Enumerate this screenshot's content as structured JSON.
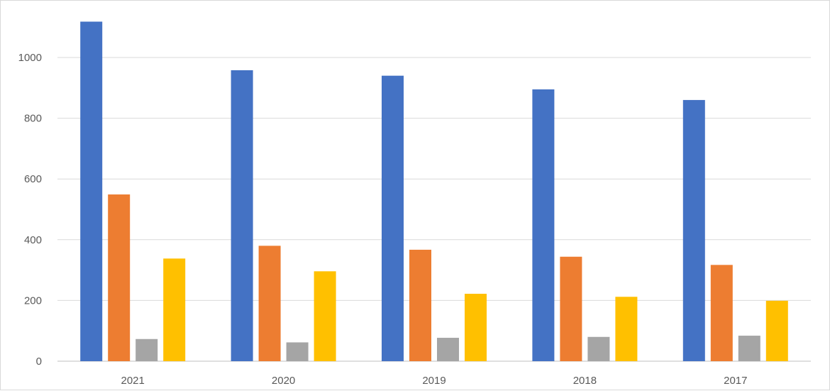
{
  "chart_data": {
    "type": "bar",
    "title": "",
    "xlabel": "",
    "ylabel": "",
    "categories": [
      "2021",
      "2020",
      "2019",
      "2018",
      "2017"
    ],
    "series": [
      {
        "values": [
          1118,
          958,
          940,
          895,
          860
        ],
        "color": "#4472C4"
      },
      {
        "values": [
          549,
          380,
          367,
          344,
          317
        ],
        "color": "#ED7D31"
      },
      {
        "values": [
          73,
          62,
          77,
          80,
          84
        ],
        "color": "#A5A5A5"
      },
      {
        "values": [
          338,
          296,
          222,
          212,
          199
        ],
        "color": "#FFC000"
      }
    ],
    "ylim": [
      0,
      1100
    ],
    "yticks": [
      "0",
      "200",
      "400",
      "600",
      "800",
      "1000"
    ],
    "grid": true,
    "legend": "none"
  }
}
